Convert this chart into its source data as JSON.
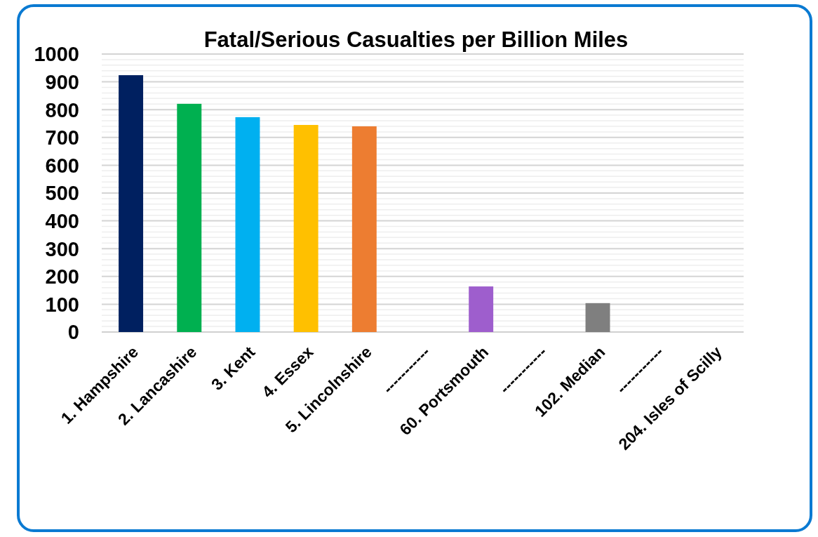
{
  "chart_data": {
    "type": "bar",
    "title": "Fatal/Serious Casualties per Billion Miles",
    "categories": [
      "1. Hampshire",
      "2. Lancashire",
      "3. Kent",
      "4. Essex",
      "5. Lincolnshire",
      "-----------",
      "60. Portsmouth",
      "-----------",
      "102. Median",
      "-----------",
      "204. Isles of Scilly"
    ],
    "values": [
      924,
      821,
      773,
      745,
      740,
      null,
      164,
      null,
      104,
      null,
      0
    ],
    "colors": [
      "#002060",
      "#00b050",
      "#00b0f0",
      "#ffc000",
      "#ed7d31",
      null,
      "#9e5ecd",
      null,
      "#7f7f7f",
      null,
      null
    ],
    "ylim": [
      0,
      1000
    ],
    "yticks": [
      0,
      {
        "value": 20,
        "label": null
      },
      {
        "value": 40,
        "label": null
      },
      {
        "value": 60,
        "label": null
      },
      {
        "value": 80,
        "label": null
      },
      100,
      {
        "value": 120,
        "label": null
      },
      {
        "value": 140,
        "label": null
      },
      {
        "value": 160,
        "label": null
      },
      {
        "value": 180,
        "label": null
      },
      200,
      {
        "value": 220,
        "label": null
      },
      {
        "value": 240,
        "label": null
      },
      {
        "value": 260,
        "label": null
      },
      {
        "value": 280,
        "label": null
      },
      300,
      {
        "value": 320,
        "label": null
      },
      {
        "value": 340,
        "label": null
      },
      {
        "value": 360,
        "label": null
      },
      {
        "value": 380,
        "label": null
      },
      400,
      {
        "value": 420,
        "label": null
      },
      {
        "value": 440,
        "label": null
      },
      {
        "value": 460,
        "label": null
      },
      {
        "value": 480,
        "label": null
      },
      500,
      {
        "value": 520,
        "label": null
      },
      {
        "value": 540,
        "label": null
      },
      {
        "value": 560,
        "label": null
      },
      {
        "value": 580,
        "label": null
      },
      600,
      {
        "value": 620,
        "label": null
      },
      {
        "value": 640,
        "label": null
      },
      {
        "value": 660,
        "label": null
      },
      {
        "value": 680,
        "label": null
      },
      700,
      {
        "value": 720,
        "label": null
      },
      {
        "value": 740,
        "label": null
      },
      {
        "value": 760,
        "label": null
      },
      {
        "value": 780,
        "label": null
      },
      800,
      {
        "value": 820,
        "label": null
      },
      {
        "value": 840,
        "label": null
      },
      {
        "value": 860,
        "label": null
      },
      {
        "value": 880,
        "label": null
      },
      900,
      {
        "value": 920,
        "label": null
      },
      {
        "value": 940,
        "label": null
      },
      {
        "value": 960,
        "label": null
      },
      {
        "value": 980,
        "label": null
      },
      1000
    ],
    "grid": true
  }
}
